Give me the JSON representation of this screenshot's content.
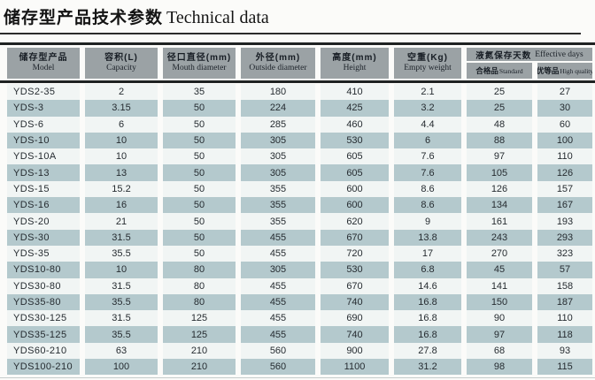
{
  "page": {
    "title_zh": "储存型产品技术参数",
    "title_en": "Technical data"
  },
  "table": {
    "columns": [
      {
        "zh": "储存型产品",
        "en": "Model"
      },
      {
        "zh": "容积(L)",
        "en": "Capacity"
      },
      {
        "zh": "径口直径(mm)",
        "en": "Mouth diameter"
      },
      {
        "zh": "外径(mm)",
        "en": "Outside diameter"
      },
      {
        "zh": "高度(mm)",
        "en": "Height"
      },
      {
        "zh": "空重(Kg)",
        "en": "Empty weight"
      }
    ],
    "group_header": {
      "zh": "液氮保存天数",
      "en": "Effective days"
    },
    "sub_columns": [
      {
        "zh": "合格品",
        "en": "Standard"
      },
      {
        "zh": "优等品",
        "en": "High quality"
      }
    ],
    "rows": [
      [
        "YDS2-35",
        "2",
        "35",
        "180",
        "410",
        "2.1",
        "25",
        "27"
      ],
      [
        "YDS-3",
        "3.15",
        "50",
        "224",
        "425",
        "3.2",
        "25",
        "30"
      ],
      [
        "YDS-6",
        "6",
        "50",
        "285",
        "460",
        "4.4",
        "48",
        "60"
      ],
      [
        "YDS-10",
        "10",
        "50",
        "305",
        "530",
        "6",
        "88",
        "100"
      ],
      [
        "YDS-10A",
        "10",
        "50",
        "305",
        "605",
        "7.6",
        "97",
        "110"
      ],
      [
        "YDS-13",
        "13",
        "50",
        "305",
        "605",
        "7.6",
        "105",
        "126"
      ],
      [
        "YDS-15",
        "15.2",
        "50",
        "355",
        "600",
        "8.6",
        "126",
        "157"
      ],
      [
        "YDS-16",
        "16",
        "50",
        "355",
        "600",
        "8.6",
        "134",
        "167"
      ],
      [
        "YDS-20",
        "21",
        "50",
        "355",
        "620",
        "9",
        "161",
        "193"
      ],
      [
        "YDS-30",
        "31.5",
        "50",
        "455",
        "670",
        "13.8",
        "243",
        "293"
      ],
      [
        "YDS-35",
        "35.5",
        "50",
        "455",
        "720",
        "17",
        "270",
        "323"
      ],
      [
        "YDS10-80",
        "10",
        "80",
        "305",
        "530",
        "6.8",
        "45",
        "57"
      ],
      [
        "YDS30-80",
        "31.5",
        "80",
        "455",
        "670",
        "14.6",
        "141",
        "158"
      ],
      [
        "YDS35-80",
        "35.5",
        "80",
        "455",
        "740",
        "16.8",
        "150",
        "187"
      ],
      [
        "YDS30-125",
        "31.5",
        "125",
        "455",
        "690",
        "16.8",
        "90",
        "110"
      ],
      [
        "YDS35-125",
        "35.5",
        "125",
        "455",
        "740",
        "16.8",
        "97",
        "118"
      ],
      [
        "YDS60-210",
        "63",
        "210",
        "560",
        "900",
        "27.8",
        "68",
        "93"
      ],
      [
        "YDS100-210",
        "100",
        "210",
        "560",
        "1100",
        "31.2",
        "98",
        "115"
      ]
    ]
  },
  "colors": {
    "header_bg": "#9ba2a5",
    "row_light": "#f1f5f4",
    "row_shaded": "#b4c9cd",
    "rule_dark": "#1f2222"
  }
}
